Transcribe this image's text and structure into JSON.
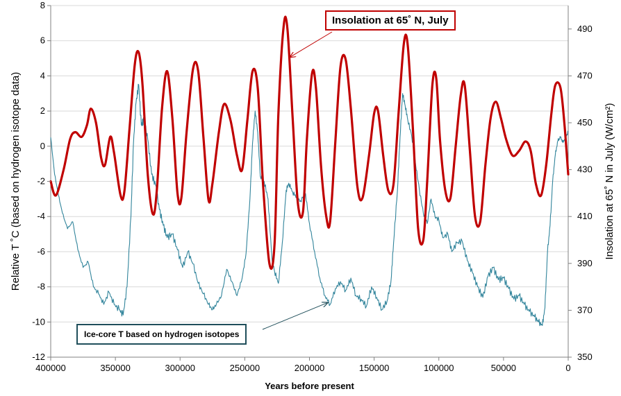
{
  "chart_data": {
    "type": "line",
    "xlabel": "Years before present",
    "ylabel_left": "Relative T ˚C (based on hydrogen isotope data)",
    "ylabel_right": "Insolation at 65˚ N in July (W/cm²)",
    "xlim": [
      400000,
      0
    ],
    "ylim_left": [
      -12,
      8
    ],
    "ylim_right": [
      350,
      500
    ],
    "x_ticks": [
      "400000",
      "350000",
      "300000",
      "250000",
      "200000",
      "150000",
      "100000",
      "50000",
      "0"
    ],
    "y_ticks_left": [
      "-12",
      "-10",
      "-8",
      "-6",
      "-4",
      "-2",
      "0",
      "2",
      "4",
      "6",
      "8"
    ],
    "y_ticks_right": [
      "350",
      "370",
      "390",
      "410",
      "430",
      "450",
      "470",
      "490"
    ],
    "grid": "horizontal",
    "series": [
      {
        "name": "Insolation at 65˚ N, July",
        "axis": "right",
        "color": "#c00000",
        "points": [
          [
            400000,
            425
          ],
          [
            396000,
            419
          ],
          [
            390000,
            430
          ],
          [
            385000,
            443
          ],
          [
            381000,
            446
          ],
          [
            376000,
            444
          ],
          [
            372000,
            449
          ],
          [
            369000,
            456
          ],
          [
            365000,
            450
          ],
          [
            361000,
            435
          ],
          [
            358000,
            432
          ],
          [
            354000,
            444
          ],
          [
            351000,
            437
          ],
          [
            346000,
            419
          ],
          [
            343000,
            421
          ],
          [
            339000,
            448
          ],
          [
            335000,
            475
          ],
          [
            332000,
            480
          ],
          [
            329000,
            466
          ],
          [
            325000,
            428
          ],
          [
            321000,
            411
          ],
          [
            318000,
            421
          ],
          [
            314000,
            456
          ],
          [
            310000,
            472
          ],
          [
            306000,
            452
          ],
          [
            302000,
            420
          ],
          [
            299000,
            418
          ],
          [
            295000,
            446
          ],
          [
            290000,
            473
          ],
          [
            286000,
            472
          ],
          [
            282000,
            444
          ],
          [
            278000,
            417
          ],
          [
            275000,
            424
          ],
          [
            270000,
            446
          ],
          [
            266000,
            458
          ],
          [
            261000,
            451
          ],
          [
            256000,
            436
          ],
          [
            252000,
            430
          ],
          [
            248000,
            451
          ],
          [
            244000,
            472
          ],
          [
            240000,
            465
          ],
          [
            236000,
            425
          ],
          [
            231000,
            390
          ],
          [
            227000,
            398
          ],
          [
            224000,
            454
          ],
          [
            220000,
            491
          ],
          [
            217000,
            490
          ],
          [
            213000,
            452
          ],
          [
            209000,
            416
          ],
          [
            205000,
            412
          ],
          [
            202000,
            443
          ],
          [
            198000,
            471
          ],
          [
            195000,
            465
          ],
          [
            191000,
            431
          ],
          [
            187000,
            410
          ],
          [
            184000,
            408
          ],
          [
            180000,
            442
          ],
          [
            176000,
            474
          ],
          [
            172000,
            477
          ],
          [
            168000,
            456
          ],
          [
            163000,
            423
          ],
          [
            159000,
            418
          ],
          [
            154000,
            436
          ],
          [
            150000,
            454
          ],
          [
            147000,
            455
          ],
          [
            143000,
            436
          ],
          [
            139000,
            421
          ],
          [
            135000,
            424
          ],
          [
            131000,
            455
          ],
          [
            127000,
            484
          ],
          [
            124000,
            483
          ],
          [
            120000,
            447
          ],
          [
            116000,
            405
          ],
          [
            112000,
            400
          ],
          [
            109000,
            425
          ],
          [
            105000,
            466
          ],
          [
            102000,
            469
          ],
          [
            99000,
            442
          ],
          [
            95000,
            421
          ],
          [
            91000,
            418
          ],
          [
            87000,
            440
          ],
          [
            83000,
            462
          ],
          [
            80000,
            466
          ],
          [
            76000,
            438
          ],
          [
            72000,
            410
          ],
          [
            68000,
            408
          ],
          [
            64000,
            432
          ],
          [
            60000,
            452
          ],
          [
            56000,
            459
          ],
          [
            52000,
            452
          ],
          [
            48000,
            443
          ],
          [
            43000,
            436
          ],
          [
            38000,
            438
          ],
          [
            33000,
            442
          ],
          [
            29000,
            438
          ],
          [
            25000,
            424
          ],
          [
            21000,
            419
          ],
          [
            17000,
            432
          ],
          [
            13000,
            454
          ],
          [
            10000,
            466
          ],
          [
            6000,
            465
          ],
          [
            3000,
            450
          ],
          [
            0,
            428
          ]
        ]
      },
      {
        "name": "Ice-core T based on hydrogen isotopes",
        "axis": "left",
        "color": "#31849b",
        "points": [
          [
            400000,
            0.5
          ],
          [
            397000,
            -1.6
          ],
          [
            394000,
            -2.8
          ],
          [
            391000,
            -3.8
          ],
          [
            387000,
            -4.7
          ],
          [
            383000,
            -4.3
          ],
          [
            379000,
            -5.9
          ],
          [
            375000,
            -6.9
          ],
          [
            371000,
            -6.6
          ],
          [
            367000,
            -8.0
          ],
          [
            363000,
            -8.4
          ],
          [
            359000,
            -9.0
          ],
          [
            355000,
            -8.3
          ],
          [
            351000,
            -9.0
          ],
          [
            347000,
            -9.3
          ],
          [
            344000,
            -9.6
          ],
          [
            341000,
            -8.0
          ],
          [
            338000,
            -4.0
          ],
          [
            336000,
            0.2
          ],
          [
            334000,
            2.5
          ],
          [
            332000,
            3.5
          ],
          [
            330000,
            1.2
          ],
          [
            328000,
            1.5
          ],
          [
            325000,
            0.4
          ],
          [
            322000,
            -1.6
          ],
          [
            319000,
            -2.2
          ],
          [
            316000,
            -3.6
          ],
          [
            313000,
            -4.5
          ],
          [
            310000,
            -5.2
          ],
          [
            306000,
            -5.0
          ],
          [
            302000,
            -5.9
          ],
          [
            298000,
            -6.9
          ],
          [
            294000,
            -6.0
          ],
          [
            290000,
            -6.7
          ],
          [
            286000,
            -7.8
          ],
          [
            282000,
            -8.4
          ],
          [
            278000,
            -9.0
          ],
          [
            275000,
            -9.3
          ],
          [
            272000,
            -9.0
          ],
          [
            268000,
            -8.5
          ],
          [
            264000,
            -7.0
          ],
          [
            260000,
            -7.7
          ],
          [
            256000,
            -8.5
          ],
          [
            252000,
            -7.5
          ],
          [
            249000,
            -6.1
          ],
          [
            246000,
            -3.0
          ],
          [
            244000,
            0.2
          ],
          [
            242000,
            2.0
          ],
          [
            240000,
            0.8
          ],
          [
            238000,
            -1.7
          ],
          [
            235000,
            -2.0
          ],
          [
            232000,
            -3.0
          ],
          [
            229000,
            -6.4
          ],
          [
            227000,
            -7.1
          ],
          [
            224000,
            -7.8
          ],
          [
            221000,
            -5.5
          ],
          [
            218000,
            -2.5
          ],
          [
            216000,
            -2.1
          ],
          [
            213000,
            -2.6
          ],
          [
            210000,
            -2.9
          ],
          [
            207000,
            -3.1
          ],
          [
            203000,
            -2.7
          ],
          [
            200000,
            -4.4
          ],
          [
            196000,
            -6.0
          ],
          [
            192000,
            -7.5
          ],
          [
            188000,
            -8.5
          ],
          [
            184000,
            -9.0
          ],
          [
            180000,
            -8.1
          ],
          [
            176000,
            -7.7
          ],
          [
            172000,
            -8.2
          ],
          [
            168000,
            -7.5
          ],
          [
            164000,
            -8.5
          ],
          [
            160000,
            -8.7
          ],
          [
            156000,
            -9.1
          ],
          [
            152000,
            -8.0
          ],
          [
            148000,
            -8.6
          ],
          [
            144000,
            -9.3
          ],
          [
            140000,
            -8.8
          ],
          [
            137000,
            -7.7
          ],
          [
            135000,
            -5.5
          ],
          [
            132000,
            -2.5
          ],
          [
            130000,
            0.5
          ],
          [
            128000,
            3.0
          ],
          [
            126000,
            2.3
          ],
          [
            124000,
            1.5
          ],
          [
            121000,
            0.6
          ],
          [
            118000,
            -1.0
          ],
          [
            115000,
            -2.5
          ],
          [
            112000,
            -3.8
          ],
          [
            109000,
            -4.4
          ],
          [
            106000,
            -3.0
          ],
          [
            103000,
            -4.0
          ],
          [
            100000,
            -4.2
          ],
          [
            97000,
            -5.2
          ],
          [
            93000,
            -5.0
          ],
          [
            90000,
            -6.0
          ],
          [
            86000,
            -5.5
          ],
          [
            82000,
            -5.4
          ],
          [
            78000,
            -6.5
          ],
          [
            74000,
            -7.2
          ],
          [
            70000,
            -8.0
          ],
          [
            66000,
            -8.6
          ],
          [
            62000,
            -7.4
          ],
          [
            58000,
            -6.9
          ],
          [
            54000,
            -7.6
          ],
          [
            50000,
            -7.5
          ],
          [
            46000,
            -8.1
          ],
          [
            42000,
            -8.7
          ],
          [
            38000,
            -8.5
          ],
          [
            34000,
            -9.0
          ],
          [
            30000,
            -9.4
          ],
          [
            26000,
            -9.7
          ],
          [
            23000,
            -10.0
          ],
          [
            20000,
            -10.2
          ],
          [
            18000,
            -9.2
          ],
          [
            16000,
            -6.0
          ],
          [
            14000,
            -4.5
          ],
          [
            12000,
            -2.0
          ],
          [
            10000,
            -0.5
          ],
          [
            8000,
            0.3
          ],
          [
            6000,
            0.5
          ],
          [
            4000,
            0.2
          ],
          [
            2000,
            0.5
          ],
          [
            0,
            0.8
          ]
        ]
      }
    ],
    "annotations": [
      {
        "text": "Insolation at 65˚ N, July",
        "target": [
          215000,
          478
        ],
        "axis": "right"
      },
      {
        "text": "Ice-core T based on hydrogen isotopes",
        "target": [
          186000,
          -8.9
        ],
        "axis": "left"
      }
    ]
  }
}
